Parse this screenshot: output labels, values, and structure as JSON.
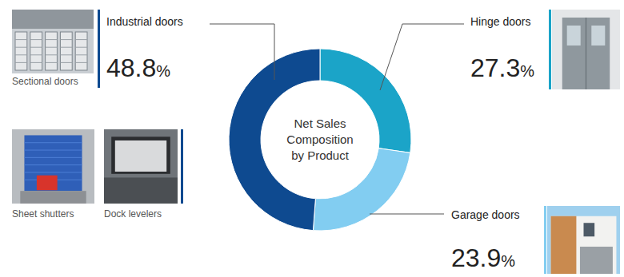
{
  "chart_data": {
    "type": "pie",
    "title": "Net Sales Composition by Product",
    "categories": [
      "Hinge doors",
      "Garage doors",
      "Industrial doors"
    ],
    "values": [
      27.3,
      23.9,
      48.8
    ],
    "value_labels": [
      "27.3%",
      "23.9%",
      "48.8%"
    ],
    "colors": [
      "#1ba4c8",
      "#82cdf1",
      "#0e4a90"
    ],
    "data_labels": true,
    "annotations": [
      "Sectional doors",
      "Sheet shutters",
      "Dock levelers"
    ]
  }
}
